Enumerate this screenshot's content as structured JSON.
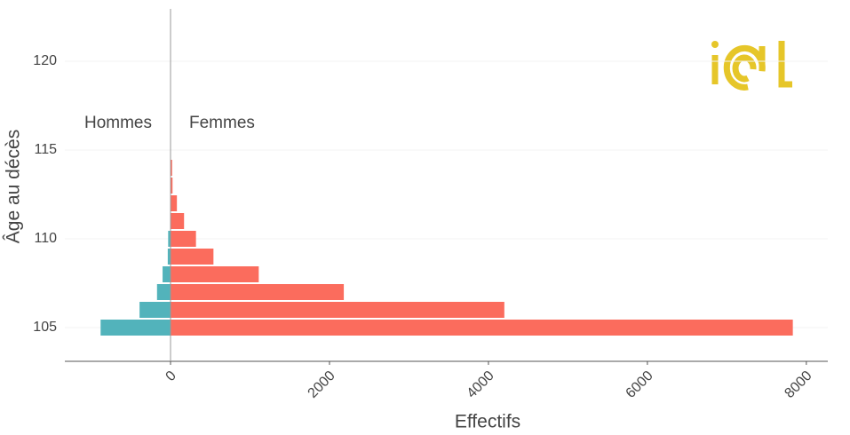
{
  "chart_data": {
    "type": "bar",
    "orientation": "horizontal",
    "x_label": "Effectifs",
    "y_label": "Âge au décès",
    "y": [
      105,
      106,
      107,
      108,
      109,
      110,
      111,
      112,
      113,
      114
    ],
    "series": [
      {
        "name": "Hommes",
        "color": "#52b3bb",
        "values": [
          -880,
          -390,
          -170,
          -100,
          -35,
          -30,
          0,
          0,
          0,
          0
        ]
      },
      {
        "name": "Femmes",
        "color": "#fb6c5d",
        "values": [
          7830,
          4200,
          2180,
          1110,
          540,
          320,
          170,
          80,
          25,
          20
        ]
      }
    ],
    "xlim": [
      -1330,
      8270
    ],
    "xticks": [
      0,
      2000,
      4000,
      6000,
      8000
    ],
    "ylim": [
      103.1,
      122.95
    ],
    "yticks": [
      105,
      110,
      115,
      120
    ],
    "grid": true
  }
}
